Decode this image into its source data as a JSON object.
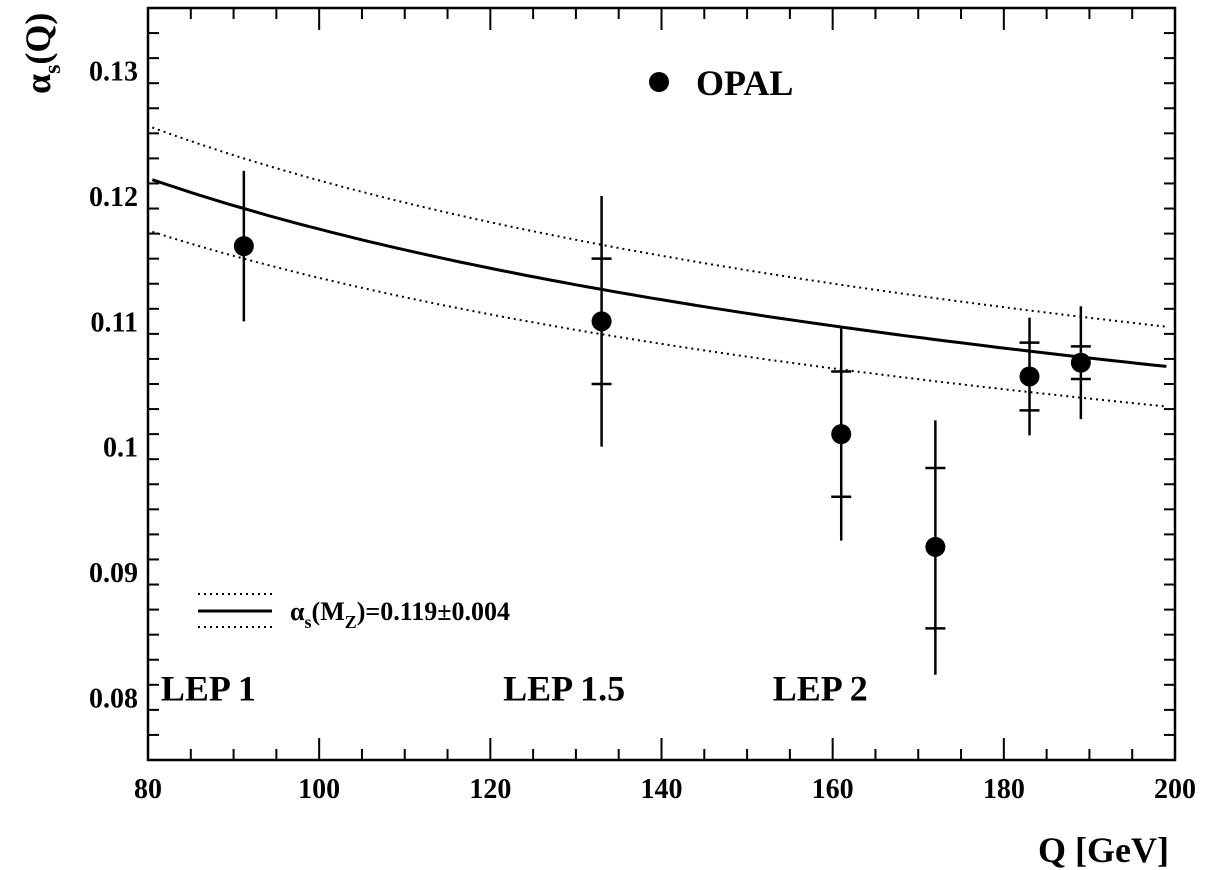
{
  "chart_data": {
    "type": "scatter",
    "xlabel": "Q [GeV]",
    "ylabel_main": "α",
    "ylabel_sub": "s",
    "ylabel_tail": "(Q)",
    "xlim": [
      80,
      200
    ],
    "ylim": [
      0.075,
      0.135
    ],
    "x_ticks": [
      80,
      100,
      120,
      140,
      160,
      180,
      200
    ],
    "x_tick_labels": [
      "80",
      "100",
      "120",
      "140",
      "160",
      "180",
      "200"
    ],
    "y_ticks": [
      0.08,
      0.09,
      0.1,
      0.11,
      0.12,
      0.13
    ],
    "y_tick_labels": [
      "0.08",
      "0.09",
      "0.1",
      "0.11",
      "0.12",
      "0.13"
    ],
    "grid": false,
    "series": [
      {
        "name": "OPAL",
        "points": [
          {
            "x": 91.2,
            "y": 0.116,
            "stat_lo": 0.116,
            "stat_hi": 0.116,
            "tot_lo": 0.11,
            "tot_hi": 0.122
          },
          {
            "x": 133,
            "y": 0.11,
            "stat_lo": 0.105,
            "stat_hi": 0.115,
            "tot_lo": 0.1,
            "tot_hi": 0.12
          },
          {
            "x": 161,
            "y": 0.101,
            "stat_lo": 0.096,
            "stat_hi": 0.106,
            "tot_lo": 0.0925,
            "tot_hi": 0.1095
          },
          {
            "x": 172,
            "y": 0.092,
            "stat_lo": 0.0855,
            "stat_hi": 0.0983,
            "tot_lo": 0.0818,
            "tot_hi": 0.1021
          },
          {
            "x": 183,
            "y": 0.1056,
            "stat_lo": 0.1029,
            "stat_hi": 0.1083,
            "tot_lo": 0.1009,
            "tot_hi": 0.1103
          },
          {
            "x": 189,
            "y": 0.1067,
            "stat_lo": 0.1054,
            "stat_hi": 0.108,
            "tot_lo": 0.1022,
            "tot_hi": 0.1112
          }
        ]
      }
    ],
    "curves": {
      "alpha_mz": 0.119,
      "alpha_mz_err": 0.004,
      "mz": 91.2
    },
    "legend": {
      "marker_label": "OPAL",
      "curve_label_prefix": "α",
      "curve_label_sub1": "s",
      "curve_label_mid": "(M",
      "curve_label_sub2": "Z",
      "curve_label_tail": ")=0.119±0.004"
    },
    "annotations": [
      {
        "text": "LEP 1",
        "x": 81.5,
        "y": 0.0808
      },
      {
        "text": "LEP 1.5",
        "x": 121.5,
        "y": 0.0808
      },
      {
        "text": "LEP 2",
        "x": 153,
        "y": 0.0808
      }
    ]
  }
}
